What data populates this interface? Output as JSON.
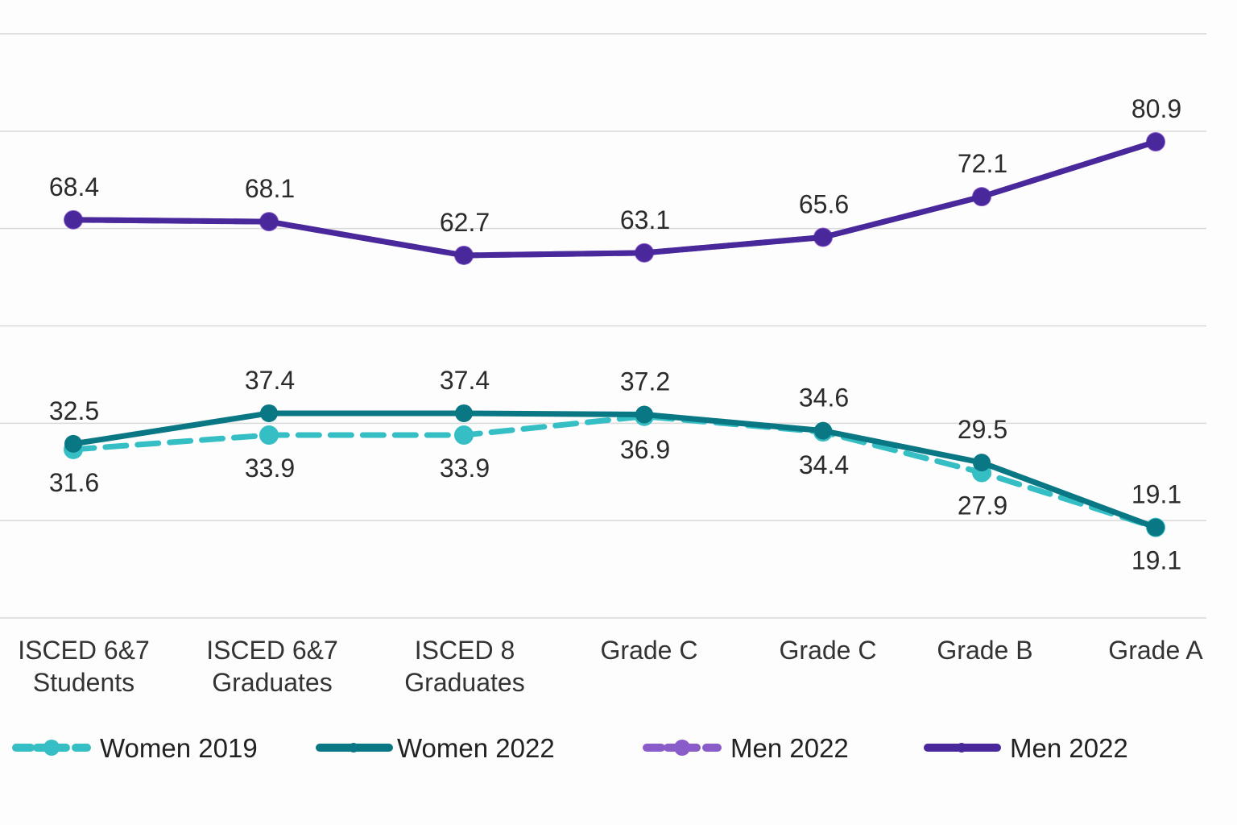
{
  "chart_data": {
    "type": "line",
    "title": "",
    "xlabel": "",
    "ylabel": "",
    "categories": [
      "ISCED 6&7\nStudents",
      "ISCED 6&7\nGraduates",
      "ISCED 8\nGraduates",
      "Grade C",
      "Grade C",
      "Grade B",
      "Grade A"
    ],
    "ylim": [
      4.6,
      98.2
    ],
    "grid": true,
    "legend_position": "bottom",
    "series": [
      {
        "name": "Men 2022",
        "style": "dashed",
        "color": "#8a5cc9",
        "values": [
          68.4,
          68.1,
          62.7,
          63.1,
          65.6,
          72.1,
          80.9
        ],
        "labels": "none"
      },
      {
        "name": "Women 2019",
        "style": "dashed",
        "color": "#35bfc4",
        "values": [
          31.6,
          33.9,
          33.9,
          36.9,
          34.4,
          27.9,
          19.1
        ],
        "labels": "below"
      },
      {
        "name": "Women 2022",
        "style": "solid",
        "color": "#0a7884",
        "values": [
          32.5,
          37.4,
          37.4,
          37.2,
          34.6,
          29.5,
          19.1
        ],
        "labels": "above"
      },
      {
        "name": "Men 2022",
        "style": "solid",
        "color": "#48289a",
        "values": [
          68.4,
          68.1,
          62.7,
          63.1,
          65.6,
          72.1,
          80.9
        ],
        "labels": "above"
      }
    ],
    "legend": [
      {
        "name": "Women 2019",
        "style": "dashed",
        "color": "#35bfc4"
      },
      {
        "name": "Women 2022",
        "style": "solid",
        "color": "#0a7884"
      },
      {
        "name": "Men 2022",
        "style": "dashed",
        "color": "#8a5cc9"
      },
      {
        "name": "Men 2022",
        "style": "solid",
        "color": "#48289a"
      }
    ]
  }
}
